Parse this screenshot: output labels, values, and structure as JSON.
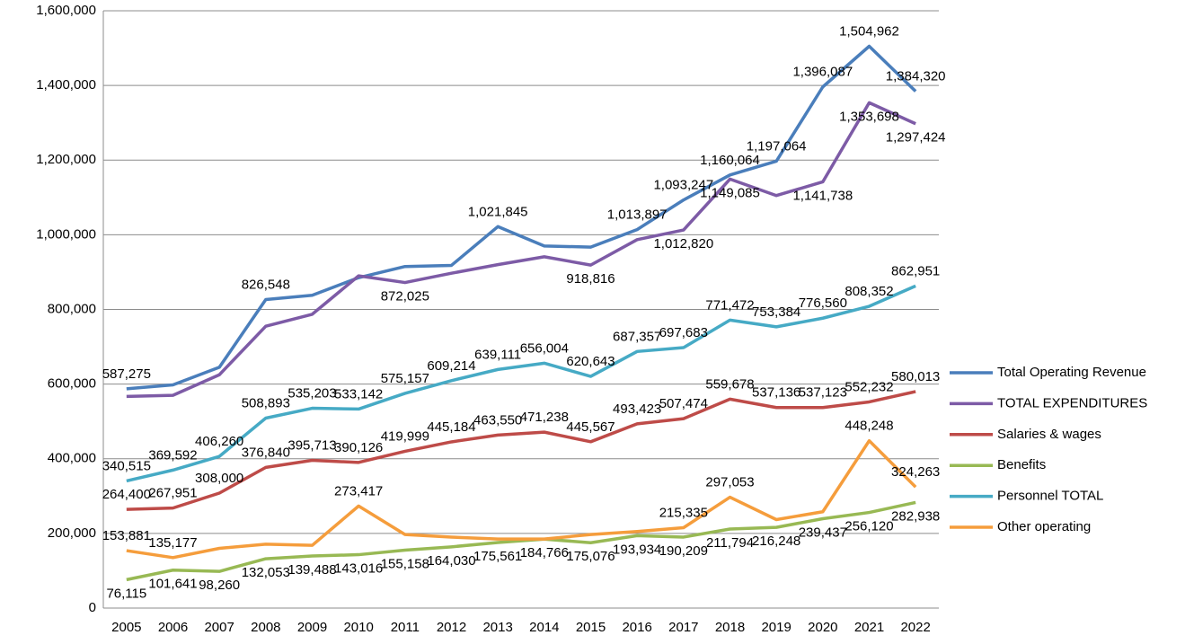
{
  "chart_data": {
    "type": "line",
    "categories": [
      "2005",
      "2006",
      "2007",
      "2008",
      "2009",
      "2010",
      "2011",
      "2012",
      "2013",
      "2014",
      "2015",
      "2016",
      "2017",
      "2018",
      "2019",
      "2020",
      "2021",
      "2022"
    ],
    "ylim": [
      0,
      1600000
    ],
    "yticks": [
      0,
      {
        "value": 200000,
        "label": "200,000"
      },
      {
        "value": 400000,
        "label": "400,000"
      },
      {
        "value": 600000,
        "label": "600,000"
      },
      {
        "value": 800000,
        "label": "800,000"
      },
      {
        "value": 1000000,
        "label": "1,000,000"
      },
      {
        "value": 1200000,
        "label": "1,200,000"
      },
      {
        "value": 1400000,
        "label": "1,400,000"
      },
      {
        "value": 1600000,
        "label": "1,600,000"
      }
    ],
    "grid": true,
    "legend": "right",
    "series": [
      {
        "name": "Total Operating Revenue",
        "color": "#4a7ebb",
        "values": [
          587275,
          598000,
          645000,
          826548,
          838000,
          885000,
          915000,
          918000,
          1021845,
          970000,
          967000,
          1013897,
          1093247,
          1160064,
          1197064,
          1396087,
          1504962,
          1384320
        ],
        "value_labels": [
          "587,275",
          null,
          null,
          "826,548",
          null,
          null,
          null,
          null,
          "1,021,845",
          null,
          null,
          "1,013,897",
          "1,093,247",
          "1,160,064",
          "1,197,064",
          "1,396,087",
          "1,504,962",
          "1,384,320"
        ]
      },
      {
        "name": "TOTAL EXPENDITURES",
        "color": "#7d5ba6",
        "values": [
          567000,
          570000,
          625000,
          755000,
          787000,
          890000,
          872025,
          897000,
          920000,
          941000,
          918816,
          987000,
          1012820,
          1149085,
          1105000,
          1141738,
          1353698,
          1297424
        ],
        "value_labels": [
          null,
          null,
          null,
          null,
          null,
          null,
          "872,025",
          null,
          null,
          null,
          "918,816",
          null,
          "1,012,820",
          "1,149,085",
          null,
          "1,141,738",
          "1,353,698",
          "1,297,424"
        ]
      },
      {
        "name": "Salaries & wages",
        "color": "#be4b48",
        "values": [
          264400,
          267951,
          308000,
          376840,
          395713,
          390126,
          419999,
          445184,
          463550,
          471238,
          445567,
          493423,
          507474,
          559678,
          537136,
          537123,
          552232,
          580013
        ],
        "value_labels": [
          "264,400",
          "267,951",
          "308,000",
          "376,840",
          "395,713",
          "390,126",
          "419,999",
          "445,184",
          "463,550",
          "471,238",
          "445,567",
          "493,423",
          "507,474",
          "559,678",
          "537,136",
          "537,123",
          "552,232",
          "580,013"
        ]
      },
      {
        "name": "Benefits",
        "color": "#98b954",
        "values": [
          76115,
          101641,
          98260,
          132053,
          139488,
          143016,
          155158,
          164030,
          175561,
          184766,
          175076,
          193934,
          190209,
          211794,
          216248,
          239437,
          256120,
          282938
        ],
        "value_labels": [
          "76,115",
          "101,641",
          "98,260",
          "132,053",
          "139,488",
          "143,016",
          "155,158",
          "164,030",
          "175,561",
          "184,766",
          "175,076",
          "193,934",
          "190,209",
          "211,794",
          "216,248",
          "239,437",
          "256,120",
          "282,938"
        ]
      },
      {
        "name": "Personnel TOTAL",
        "color": "#46aac5",
        "values": [
          340515,
          369592,
          406260,
          508893,
          535203,
          533142,
          575157,
          609214,
          639111,
          656004,
          620643,
          687357,
          697683,
          771472,
          753384,
          776560,
          808352,
          862951
        ],
        "value_labels": [
          "340,515",
          "369,592",
          "406,260",
          "508,893",
          "535,203",
          "533,142",
          "575,157",
          "609,214",
          "639,111",
          "656,004",
          "620,643",
          "687,357",
          "697,683",
          "771,472",
          "753,384",
          "776,560",
          "808,352",
          "862,951"
        ]
      },
      {
        "name": "Other operating",
        "color": "#f59d3c",
        "values": [
          153881,
          135177,
          160000,
          171000,
          168000,
          273417,
          197000,
          190000,
          185000,
          185000,
          197000,
          205000,
          215335,
          297053,
          237000,
          258000,
          448248,
          324263
        ],
        "value_labels": [
          "153,881",
          "135,177",
          null,
          null,
          null,
          "273,417",
          null,
          null,
          null,
          null,
          null,
          null,
          "215,335",
          "297,053",
          null,
          null,
          "448,248",
          "324,263"
        ]
      }
    ]
  }
}
